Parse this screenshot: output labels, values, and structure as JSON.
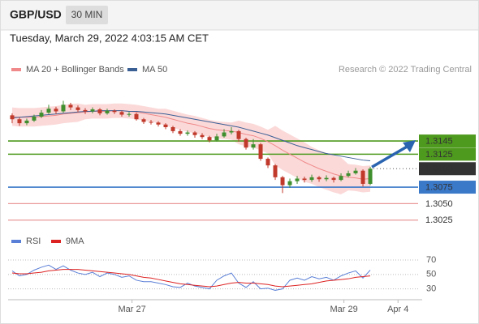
{
  "header": {
    "symbol": "GBP/USD",
    "interval": "30 MIN",
    "timestamp": "Tuesday, March 29, 2022 4:03:15 AM CET"
  },
  "chart_data": [
    {
      "type": "candlestick",
      "credit": "Research © 2022 Trading Central",
      "x": [
        0,
        1,
        2,
        3,
        4,
        5,
        6,
        7,
        8,
        9,
        10,
        11,
        12,
        13,
        14,
        15,
        16,
        17,
        18,
        19,
        20,
        21,
        22,
        23,
        24,
        25,
        26,
        27,
        28,
        29,
        30,
        31,
        32,
        33,
        34,
        35,
        36,
        37,
        38,
        39,
        40,
        41,
        42,
        43,
        44,
        45,
        46,
        47,
        48,
        49
      ],
      "xlim": [
        -0.33,
        55.55
      ],
      "xticks": [
        {
          "value": 16.4,
          "label": "Mar 27"
        },
        {
          "value": 45.4,
          "label": "Mar 29"
        },
        {
          "value": 52.8,
          "label": "Apr 4"
        }
      ],
      "ylim": [
        1.3005,
        1.3225
      ],
      "up_color": "#3f8f2f",
      "down_color": "#c0392b",
      "ohlc": [
        [
          1.3184,
          1.3187,
          1.3172,
          1.3178
        ],
        [
          1.3178,
          1.3181,
          1.3168,
          1.3172
        ],
        [
          1.3172,
          1.3179,
          1.3169,
          1.3176
        ],
        [
          1.3176,
          1.3185,
          1.3174,
          1.3182
        ],
        [
          1.3182,
          1.3192,
          1.318,
          1.3188
        ],
        [
          1.3188,
          1.32,
          1.3186,
          1.3194
        ],
        [
          1.3194,
          1.3197,
          1.3186,
          1.319
        ],
        [
          1.319,
          1.3206,
          1.3188,
          1.32
        ],
        [
          1.32,
          1.3203,
          1.3192,
          1.3196
        ],
        [
          1.3196,
          1.3199,
          1.3189,
          1.3192
        ],
        [
          1.3192,
          1.3195,
          1.3186,
          1.319
        ],
        [
          1.319,
          1.3196,
          1.3187,
          1.3193
        ],
        [
          1.3193,
          1.3195,
          1.3184,
          1.3187
        ],
        [
          1.3187,
          1.3194,
          1.3185,
          1.3191
        ],
        [
          1.3191,
          1.3193,
          1.3186,
          1.3189
        ],
        [
          1.3189,
          1.3191,
          1.3182,
          1.3185
        ],
        [
          1.3185,
          1.3189,
          1.3182,
          1.3186
        ],
        [
          1.3186,
          1.3188,
          1.3176,
          1.3178
        ],
        [
          1.3178,
          1.318,
          1.3171,
          1.3174
        ],
        [
          1.3174,
          1.3177,
          1.317,
          1.3173
        ],
        [
          1.3173,
          1.3175,
          1.3167,
          1.317
        ],
        [
          1.317,
          1.3172,
          1.3163,
          1.3166
        ],
        [
          1.3166,
          1.3168,
          1.3157,
          1.316
        ],
        [
          1.316,
          1.3163,
          1.3153,
          1.3156
        ],
        [
          1.3156,
          1.3161,
          1.3153,
          1.3158
        ],
        [
          1.3158,
          1.316,
          1.315,
          1.3154
        ],
        [
          1.3154,
          1.3157,
          1.3148,
          1.3151
        ],
        [
          1.3151,
          1.3153,
          1.3143,
          1.3146
        ],
        [
          1.3146,
          1.3156,
          1.3144,
          1.3152
        ],
        [
          1.3152,
          1.3163,
          1.315,
          1.3158
        ],
        [
          1.3158,
          1.3166,
          1.3155,
          1.316
        ],
        [
          1.316,
          1.3162,
          1.3144,
          1.3148
        ],
        [
          1.3148,
          1.315,
          1.3132,
          1.3135
        ],
        [
          1.3135,
          1.3148,
          1.3132,
          1.314
        ],
        [
          1.314,
          1.3142,
          1.3115,
          1.3118
        ],
        [
          1.3118,
          1.312,
          1.3104,
          1.3108
        ],
        [
          1.3108,
          1.311,
          1.3086,
          1.309
        ],
        [
          1.309,
          1.3092,
          1.3066,
          1.3078
        ],
        [
          1.3078,
          1.3088,
          1.3074,
          1.3084
        ],
        [
          1.3084,
          1.3092,
          1.308,
          1.3088
        ],
        [
          1.3088,
          1.3091,
          1.3082,
          1.3086
        ],
        [
          1.3086,
          1.3094,
          1.3083,
          1.309
        ],
        [
          1.309,
          1.3092,
          1.3083,
          1.3087
        ],
        [
          1.3087,
          1.3093,
          1.3084,
          1.3089
        ],
        [
          1.3089,
          1.3091,
          1.3082,
          1.3086
        ],
        [
          1.3086,
          1.3096,
          1.3084,
          1.3092
        ],
        [
          1.3092,
          1.31,
          1.309,
          1.3096
        ],
        [
          1.3096,
          1.3104,
          1.3094,
          1.31
        ],
        [
          1.31,
          1.3102,
          1.3076,
          1.308
        ],
        [
          1.308,
          1.3106,
          1.3078,
          1.3103
        ]
      ],
      "series": [
        {
          "name": "MA 20 + Bollinger Bands",
          "color": "#f08a8a",
          "band_color": "#fbd9d9",
          "values": [
            1.3182,
            1.3181,
            1.3181,
            1.3181,
            1.3182,
            1.3183,
            1.3184,
            1.3186,
            1.3187,
            1.3188,
            1.3189,
            1.319,
            1.319,
            1.319,
            1.3191,
            1.3191,
            1.319,
            1.3189,
            1.3187,
            1.3185,
            1.3183,
            1.3181,
            1.3178,
            1.3175,
            1.3172,
            1.317,
            1.3167,
            1.3164,
            1.3162,
            1.3161,
            1.316,
            1.3158,
            1.3155,
            1.3153,
            1.3149,
            1.3144,
            1.3138,
            1.3131,
            1.3125,
            1.3119,
            1.3113,
            1.3108,
            1.3103,
            1.3099,
            1.3095,
            1.3092,
            1.309,
            1.3089,
            1.3087,
            1.3088
          ],
          "upper": [
            1.3196,
            1.3195,
            1.3195,
            1.3195,
            1.3196,
            1.3197,
            1.3198,
            1.32,
            1.3201,
            1.3202,
            1.32,
            1.3201,
            1.3201,
            1.3201,
            1.3202,
            1.3202,
            1.3201,
            1.32,
            1.3198,
            1.3196,
            1.3194,
            1.3194,
            1.3191,
            1.3188,
            1.3185,
            1.3183,
            1.318,
            1.3177,
            1.3175,
            1.3174,
            1.3173,
            1.3176,
            1.3173,
            1.3171,
            1.3167,
            1.3162,
            1.3168,
            1.3161,
            1.3155,
            1.3149,
            1.3143,
            1.3136,
            1.3131,
            1.3127,
            1.3123,
            1.312,
            1.311,
            1.3109,
            1.3107,
            1.3108
          ],
          "lower": [
            1.3168,
            1.3167,
            1.3167,
            1.3167,
            1.3168,
            1.3169,
            1.317,
            1.3172,
            1.3173,
            1.3174,
            1.3178,
            1.3179,
            1.3179,
            1.3179,
            1.318,
            1.318,
            1.3179,
            1.3178,
            1.3176,
            1.3174,
            1.3172,
            1.3168,
            1.3165,
            1.3162,
            1.3159,
            1.3157,
            1.3154,
            1.3151,
            1.3149,
            1.3148,
            1.3147,
            1.314,
            1.3137,
            1.3135,
            1.3131,
            1.3126,
            1.3108,
            1.3101,
            1.3095,
            1.3089,
            1.3083,
            1.308,
            1.3075,
            1.3071,
            1.3067,
            1.3064,
            1.307,
            1.3069,
            1.3067,
            1.3068
          ]
        },
        {
          "name": "MA 50",
          "color": "#3a5f95",
          "values": [
            1.318,
            1.3181,
            1.3182,
            1.3183,
            1.3184,
            1.3185,
            1.3186,
            1.3187,
            1.3188,
            1.3189,
            1.319,
            1.319,
            1.3191,
            1.3191,
            1.3191,
            1.3191,
            1.319,
            1.319,
            1.3189,
            1.3188,
            1.3187,
            1.3186,
            1.3184,
            1.3182,
            1.318,
            1.3178,
            1.3176,
            1.3174,
            1.3172,
            1.317,
            1.3168,
            1.3166,
            1.3163,
            1.316,
            1.3157,
            1.3154,
            1.315,
            1.3146,
            1.3142,
            1.3138,
            1.3135,
            1.3132,
            1.3129,
            1.3126,
            1.3124,
            1.3122,
            1.312,
            1.3118,
            1.3116,
            1.3115
          ]
        }
      ],
      "levels": [
        {
          "value": 1.3145,
          "color": "#4e9a1e",
          "style": "box"
        },
        {
          "value": 1.3125,
          "color": "#4e9a1e",
          "style": "box"
        },
        {
          "value": 1.3075,
          "color": "#3a78c8",
          "style": "box"
        },
        {
          "value": 1.305,
          "label": "1.3050",
          "color": "#e99a9a",
          "style": "text",
          "text_color": "#d9322f"
        },
        {
          "value": 1.3025,
          "color": "#e99a9a",
          "style": "text",
          "text_color": "#d9322f"
        }
      ],
      "last": {
        "value": 1.3103,
        "color": "#333333"
      }
    },
    {
      "type": "line",
      "x": [
        0,
        1,
        2,
        3,
        4,
        5,
        6,
        7,
        8,
        9,
        10,
        11,
        12,
        13,
        14,
        15,
        16,
        17,
        18,
        19,
        20,
        21,
        22,
        23,
        24,
        25,
        26,
        27,
        28,
        29,
        30,
        31,
        32,
        33,
        34,
        35,
        36,
        37,
        38,
        39,
        40,
        41,
        42,
        43,
        44,
        45,
        46,
        47,
        48,
        49
      ],
      "xlim": [
        -0.33,
        55.55
      ],
      "ylim": [
        15,
        88
      ],
      "yticks": [
        70,
        50,
        30
      ],
      "grid": true,
      "series": [
        {
          "name": "RSI",
          "color": "#5a7fd6",
          "values": [
            55,
            48,
            50,
            56,
            60,
            63,
            57,
            62,
            56,
            52,
            50,
            53,
            47,
            52,
            50,
            46,
            48,
            42,
            40,
            40,
            38,
            36,
            33,
            32,
            38,
            34,
            32,
            30,
            42,
            48,
            52,
            38,
            32,
            40,
            30,
            31,
            28,
            30,
            42,
            45,
            42,
            47,
            44,
            46,
            42,
            48,
            52,
            55,
            45,
            56
          ]
        },
        {
          "name": "9MA",
          "color": "#dd2222",
          "values": [
            52,
            51,
            51,
            52,
            53,
            55,
            56,
            57,
            57,
            57,
            56,
            55,
            54,
            53,
            52,
            51,
            50,
            48,
            46,
            45,
            43,
            41,
            39,
            37,
            36,
            35,
            34,
            33,
            34,
            36,
            38,
            39,
            38,
            38,
            37,
            36,
            34,
            33,
            34,
            35,
            36,
            37,
            39,
            41,
            42,
            43,
            44,
            46,
            47,
            48
          ]
        }
      ]
    }
  ]
}
